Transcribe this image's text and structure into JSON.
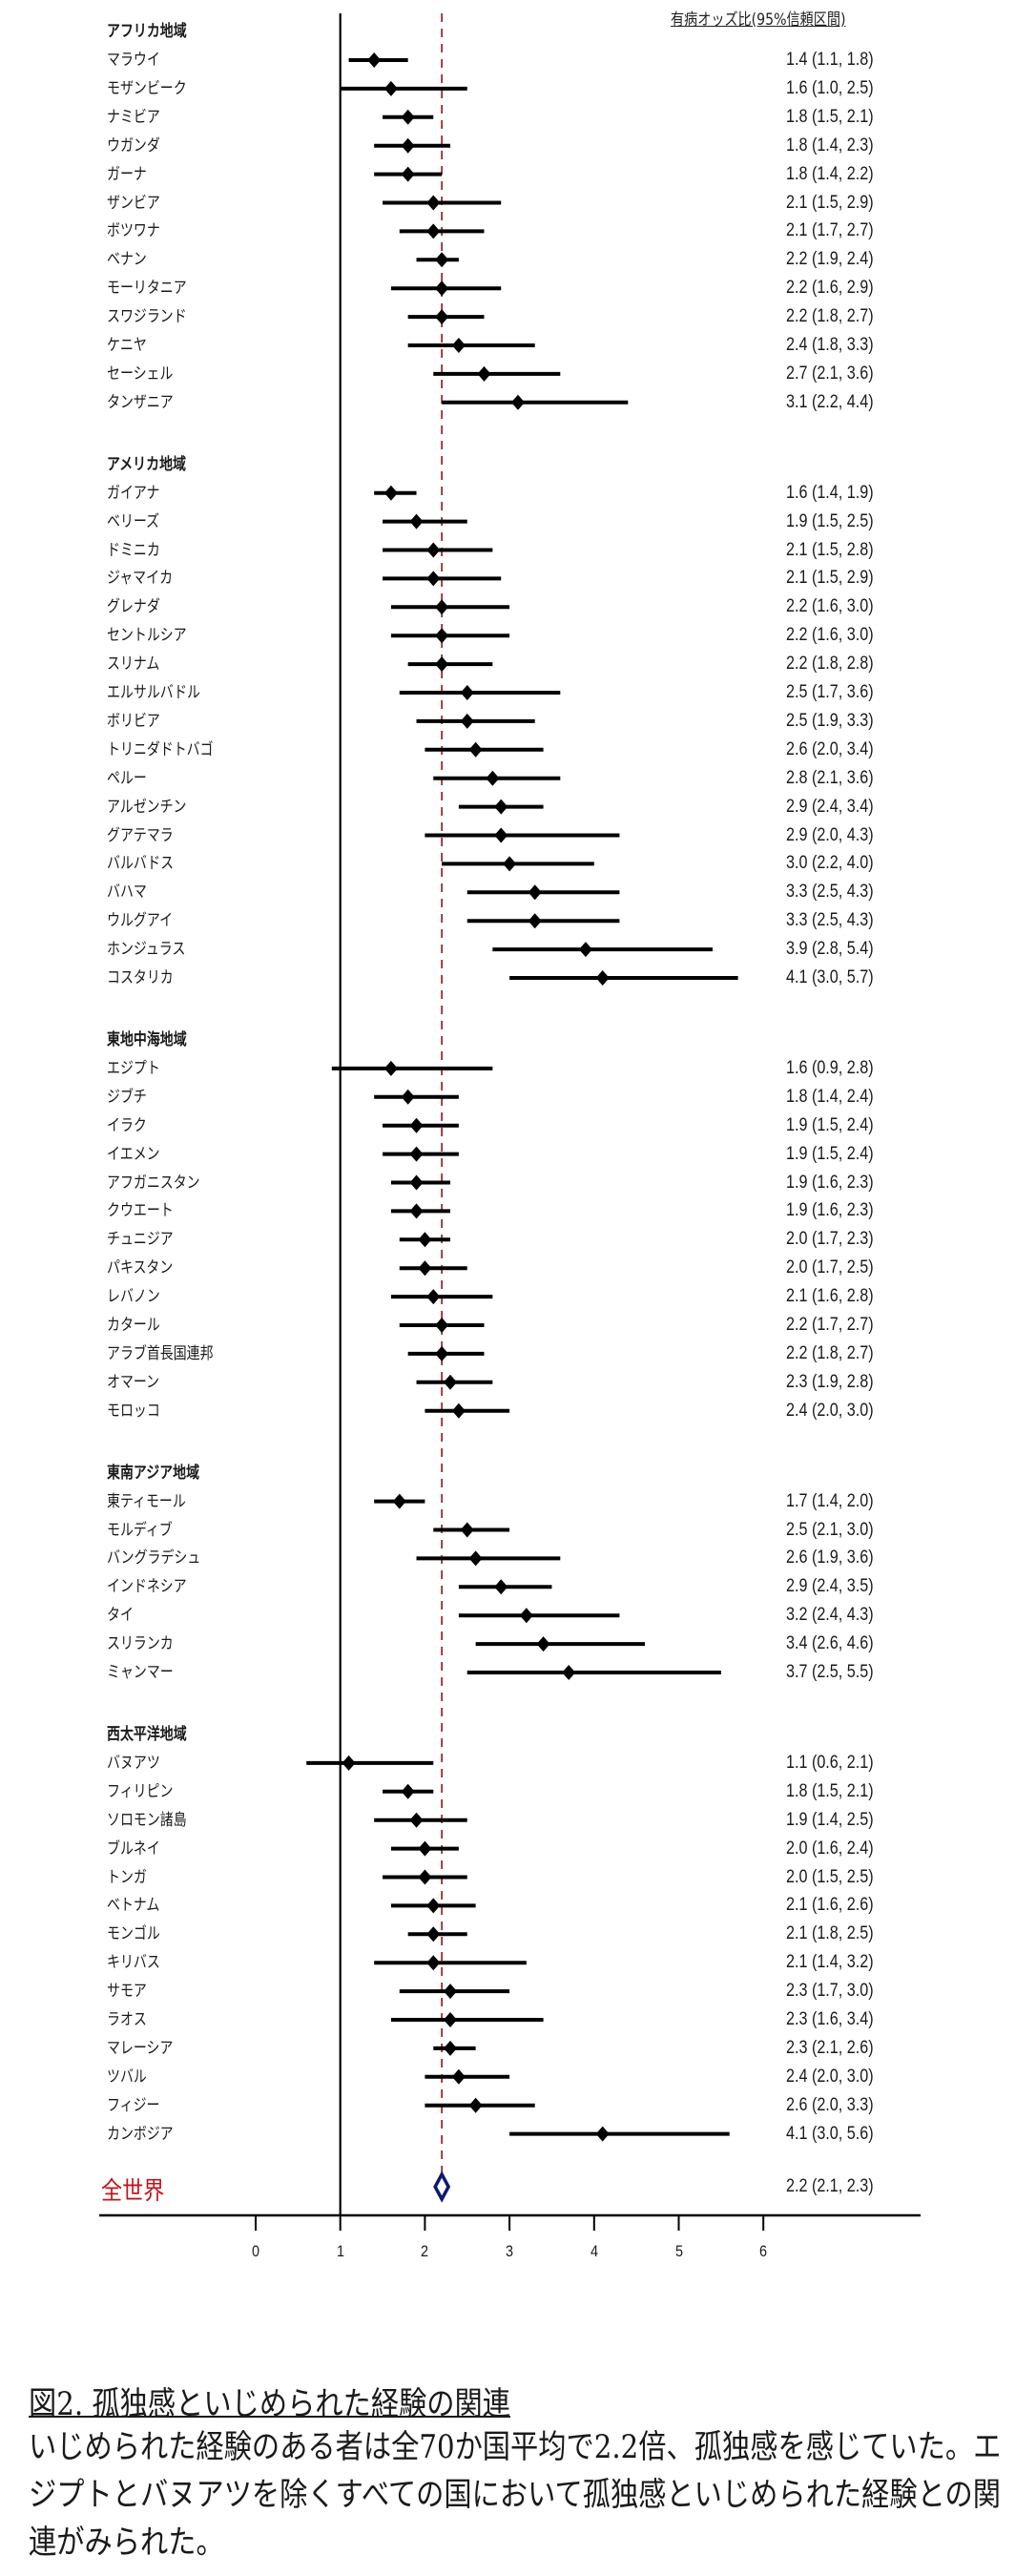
{
  "header": {
    "column_title": "有病オッズ比(95%信頼区間)"
  },
  "world": {
    "label": "全世界",
    "or_text": "2.2 (2.1, 2.3)"
  },
  "axis": {
    "ticks": [
      "0",
      "1",
      "2",
      "3",
      "4",
      "5",
      "6"
    ]
  },
  "caption": {
    "title": "図2. 孤独感といじめられた経験の関連",
    "body": "いじめられた経験のある者は全70か国平均で2.2倍、孤独感を感じていた。エジプトとバヌアツを除くすべての国において孤独感といじめられた経験との関連がみられた。"
  },
  "colors": {
    "point": "#000000",
    "reference_line": "#9b2b2b",
    "world_diamond": "#0d1a6e",
    "world_label": "#c0141c"
  },
  "chart_data": {
    "type": "forest",
    "title": "図2. 孤独感といじめられた経験の関連",
    "xlabel": "",
    "ylabel": "",
    "xlim": [
      0,
      6
    ],
    "x_ticks": [
      0,
      1,
      2,
      3,
      4,
      5,
      6
    ],
    "reference_lines": [
      {
        "x": 1,
        "style": "solid"
      },
      {
        "x": 2.2,
        "style": "dashed",
        "color": "#9b2b2b"
      }
    ],
    "column_header": "有病オッズ比(95%信頼区間)",
    "groups": [
      {
        "name": "アフリカ地域",
        "rows": [
          {
            "country": "マラウイ",
            "or": 1.4,
            "lo": 1.1,
            "hi": 1.8,
            "text": "1.4 (1.1, 1.8)"
          },
          {
            "country": "モザンビーク",
            "or": 1.6,
            "lo": 1.0,
            "hi": 2.5,
            "text": "1.6 (1.0, 2.5)"
          },
          {
            "country": "ナミビア",
            "or": 1.8,
            "lo": 1.5,
            "hi": 2.1,
            "text": "1.8 (1.5, 2.1)"
          },
          {
            "country": "ウガンダ",
            "or": 1.8,
            "lo": 1.4,
            "hi": 2.3,
            "text": "1.8 (1.4, 2.3)"
          },
          {
            "country": "ガーナ",
            "or": 1.8,
            "lo": 1.4,
            "hi": 2.2,
            "text": "1.8 (1.4, 2.2)"
          },
          {
            "country": "ザンビア",
            "or": 2.1,
            "lo": 1.5,
            "hi": 2.9,
            "text": "2.1 (1.5, 2.9)"
          },
          {
            "country": "ボツワナ",
            "or": 2.1,
            "lo": 1.7,
            "hi": 2.7,
            "text": "2.1 (1.7, 2.7)"
          },
          {
            "country": "ベナン",
            "or": 2.2,
            "lo": 1.9,
            "hi": 2.4,
            "text": "2.2 (1.9, 2.4)"
          },
          {
            "country": "モーリタニア",
            "or": 2.2,
            "lo": 1.6,
            "hi": 2.9,
            "text": "2.2 (1.6, 2.9)"
          },
          {
            "country": "スワジランド",
            "or": 2.2,
            "lo": 1.8,
            "hi": 2.7,
            "text": "2.2 (1.8, 2.7)"
          },
          {
            "country": "ケニヤ",
            "or": 2.4,
            "lo": 1.8,
            "hi": 3.3,
            "text": "2.4 (1.8, 3.3)"
          },
          {
            "country": "セーシェル",
            "or": 2.7,
            "lo": 2.1,
            "hi": 3.6,
            "text": "2.7 (2.1, 3.6)"
          },
          {
            "country": "タンザニア",
            "or": 3.1,
            "lo": 2.2,
            "hi": 4.4,
            "text": "3.1 (2.2, 4.4)"
          }
        ]
      },
      {
        "name": "アメリカ地域",
        "rows": [
          {
            "country": "ガイアナ",
            "or": 1.6,
            "lo": 1.4,
            "hi": 1.9,
            "text": "1.6 (1.4, 1.9)"
          },
          {
            "country": "ベリーズ",
            "or": 1.9,
            "lo": 1.5,
            "hi": 2.5,
            "text": "1.9 (1.5, 2.5)"
          },
          {
            "country": "ドミニカ",
            "or": 2.1,
            "lo": 1.5,
            "hi": 2.8,
            "text": "2.1 (1.5, 2.8)"
          },
          {
            "country": "ジャマイカ",
            "or": 2.1,
            "lo": 1.5,
            "hi": 2.9,
            "text": "2.1 (1.5, 2.9)"
          },
          {
            "country": "グレナダ",
            "or": 2.2,
            "lo": 1.6,
            "hi": 3.0,
            "text": "2.2 (1.6, 3.0)"
          },
          {
            "country": "セントルシア",
            "or": 2.2,
            "lo": 1.6,
            "hi": 3.0,
            "text": "2.2 (1.6, 3.0)"
          },
          {
            "country": "スリナム",
            "or": 2.2,
            "lo": 1.8,
            "hi": 2.8,
            "text": "2.2 (1.8, 2.8)"
          },
          {
            "country": "エルサルバドル",
            "or": 2.5,
            "lo": 1.7,
            "hi": 3.6,
            "text": "2.5 (1.7, 3.6)"
          },
          {
            "country": "ボリビア",
            "or": 2.5,
            "lo": 1.9,
            "hi": 3.3,
            "text": "2.5 (1.9, 3.3)"
          },
          {
            "country": "トリニダドトバゴ",
            "or": 2.6,
            "lo": 2.0,
            "hi": 3.4,
            "text": "2.6 (2.0, 3.4)"
          },
          {
            "country": "ペルー",
            "or": 2.8,
            "lo": 2.1,
            "hi": 3.6,
            "text": "2.8 (2.1, 3.6)"
          },
          {
            "country": "アルゼンチン",
            "or": 2.9,
            "lo": 2.4,
            "hi": 3.4,
            "text": "2.9 (2.4, 3.4)"
          },
          {
            "country": "グアテマラ",
            "or": 2.9,
            "lo": 2.0,
            "hi": 4.3,
            "text": "2.9 (2.0, 4.3)"
          },
          {
            "country": "バルバドス",
            "or": 3.0,
            "lo": 2.2,
            "hi": 4.0,
            "text": "3.0 (2.2, 4.0)"
          },
          {
            "country": "バハマ",
            "or": 3.3,
            "lo": 2.5,
            "hi": 4.3,
            "text": "3.3 (2.5, 4.3)"
          },
          {
            "country": "ウルグアイ",
            "or": 3.3,
            "lo": 2.5,
            "hi": 4.3,
            "text": "3.3 (2.5, 4.3)"
          },
          {
            "country": "ホンジュラス",
            "or": 3.9,
            "lo": 2.8,
            "hi": 5.4,
            "text": "3.9 (2.8, 5.4)"
          },
          {
            "country": "コスタリカ",
            "or": 4.1,
            "lo": 3.0,
            "hi": 5.7,
            "text": "4.1 (3.0, 5.7)"
          }
        ]
      },
      {
        "name": "東地中海地域",
        "rows": [
          {
            "country": "エジプト",
            "or": 1.6,
            "lo": 0.9,
            "hi": 2.8,
            "text": "1.6 (0.9, 2.8)"
          },
          {
            "country": "ジブチ",
            "or": 1.8,
            "lo": 1.4,
            "hi": 2.4,
            "text": "1.8 (1.4, 2.4)"
          },
          {
            "country": "イラク",
            "or": 1.9,
            "lo": 1.5,
            "hi": 2.4,
            "text": "1.9 (1.5, 2.4)"
          },
          {
            "country": "イエメン",
            "or": 1.9,
            "lo": 1.5,
            "hi": 2.4,
            "text": "1.9 (1.5, 2.4)"
          },
          {
            "country": "アフガニスタン",
            "or": 1.9,
            "lo": 1.6,
            "hi": 2.3,
            "text": "1.9 (1.6, 2.3)"
          },
          {
            "country": "クウエート",
            "or": 1.9,
            "lo": 1.6,
            "hi": 2.3,
            "text": "1.9 (1.6, 2.3)"
          },
          {
            "country": "チュニジア",
            "or": 2.0,
            "lo": 1.7,
            "hi": 2.3,
            "text": "2.0 (1.7, 2.3)"
          },
          {
            "country": "パキスタン",
            "or": 2.0,
            "lo": 1.7,
            "hi": 2.5,
            "text": "2.0 (1.7, 2.5)"
          },
          {
            "country": "レバノン",
            "or": 2.1,
            "lo": 1.6,
            "hi": 2.8,
            "text": "2.1 (1.6, 2.8)"
          },
          {
            "country": "カタール",
            "or": 2.2,
            "lo": 1.7,
            "hi": 2.7,
            "text": "2.2 (1.7, 2.7)"
          },
          {
            "country": "アラブ首長国連邦",
            "or": 2.2,
            "lo": 1.8,
            "hi": 2.7,
            "text": "2.2 (1.8, 2.7)"
          },
          {
            "country": "オマーン",
            "or": 2.3,
            "lo": 1.9,
            "hi": 2.8,
            "text": "2.3 (1.9, 2.8)"
          },
          {
            "country": "モロッコ",
            "or": 2.4,
            "lo": 2.0,
            "hi": 3.0,
            "text": "2.4 (2.0, 3.0)"
          }
        ]
      },
      {
        "name": "東南アジア地域",
        "rows": [
          {
            "country": "東ティモール",
            "or": 1.7,
            "lo": 1.4,
            "hi": 2.0,
            "text": "1.7 (1.4, 2.0)"
          },
          {
            "country": "モルディブ",
            "or": 2.5,
            "lo": 2.1,
            "hi": 3.0,
            "text": "2.5 (2.1, 3.0)"
          },
          {
            "country": "バングラデシュ",
            "or": 2.6,
            "lo": 1.9,
            "hi": 3.6,
            "text": "2.6 (1.9, 3.6)"
          },
          {
            "country": "インドネシア",
            "or": 2.9,
            "lo": 2.4,
            "hi": 3.5,
            "text": "2.9 (2.4, 3.5)"
          },
          {
            "country": "タイ",
            "or": 3.2,
            "lo": 2.4,
            "hi": 4.3,
            "text": "3.2 (2.4, 4.3)"
          },
          {
            "country": "スリランカ",
            "or": 3.4,
            "lo": 2.6,
            "hi": 4.6,
            "text": "3.4 (2.6, 4.6)"
          },
          {
            "country": "ミャンマー",
            "or": 3.7,
            "lo": 2.5,
            "hi": 5.5,
            "text": "3.7 (2.5, 5.5)"
          }
        ]
      },
      {
        "name": "西太平洋地域",
        "rows": [
          {
            "country": "バヌアツ",
            "or": 1.1,
            "lo": 0.6,
            "hi": 2.1,
            "text": "1.1 (0.6, 2.1)"
          },
          {
            "country": "フィリピン",
            "or": 1.8,
            "lo": 1.5,
            "hi": 2.1,
            "text": "1.8 (1.5, 2.1)"
          },
          {
            "country": "ソロモン諸島",
            "or": 1.9,
            "lo": 1.4,
            "hi": 2.5,
            "text": "1.9 (1.4, 2.5)"
          },
          {
            "country": "ブルネイ",
            "or": 2.0,
            "lo": 1.6,
            "hi": 2.4,
            "text": "2.0 (1.6, 2.4)"
          },
          {
            "country": "トンガ",
            "or": 2.0,
            "lo": 1.5,
            "hi": 2.5,
            "text": "2.0 (1.5, 2.5)"
          },
          {
            "country": "ベトナム",
            "or": 2.1,
            "lo": 1.6,
            "hi": 2.6,
            "text": "2.1 (1.6, 2.6)"
          },
          {
            "country": "モンゴル",
            "or": 2.1,
            "lo": 1.8,
            "hi": 2.5,
            "text": "2.1 (1.8, 2.5)"
          },
          {
            "country": "キリバス",
            "or": 2.1,
            "lo": 1.4,
            "hi": 3.2,
            "text": "2.1 (1.4, 3.2)"
          },
          {
            "country": "サモア",
            "or": 2.3,
            "lo": 1.7,
            "hi": 3.0,
            "text": "2.3 (1.7, 3.0)"
          },
          {
            "country": "ラオス",
            "or": 2.3,
            "lo": 1.6,
            "hi": 3.4,
            "text": "2.3 (1.6, 3.4)"
          },
          {
            "country": "マレーシア",
            "or": 2.3,
            "lo": 2.1,
            "hi": 2.6,
            "text": "2.3 (2.1, 2.6)"
          },
          {
            "country": "ツバル",
            "or": 2.4,
            "lo": 2.0,
            "hi": 3.0,
            "text": "2.4 (2.0, 3.0)"
          },
          {
            "country": "フィジー",
            "or": 2.6,
            "lo": 2.0,
            "hi": 3.3,
            "text": "2.6 (2.0, 3.3)"
          },
          {
            "country": "カンボジア",
            "or": 4.1,
            "lo": 3.0,
            "hi": 5.6,
            "text": "4.1 (3.0, 5.6)"
          }
        ]
      }
    ],
    "overall": {
      "label": "全世界",
      "or": 2.2,
      "lo": 2.1,
      "hi": 2.3,
      "text": "2.2 (2.1, 2.3)"
    }
  }
}
